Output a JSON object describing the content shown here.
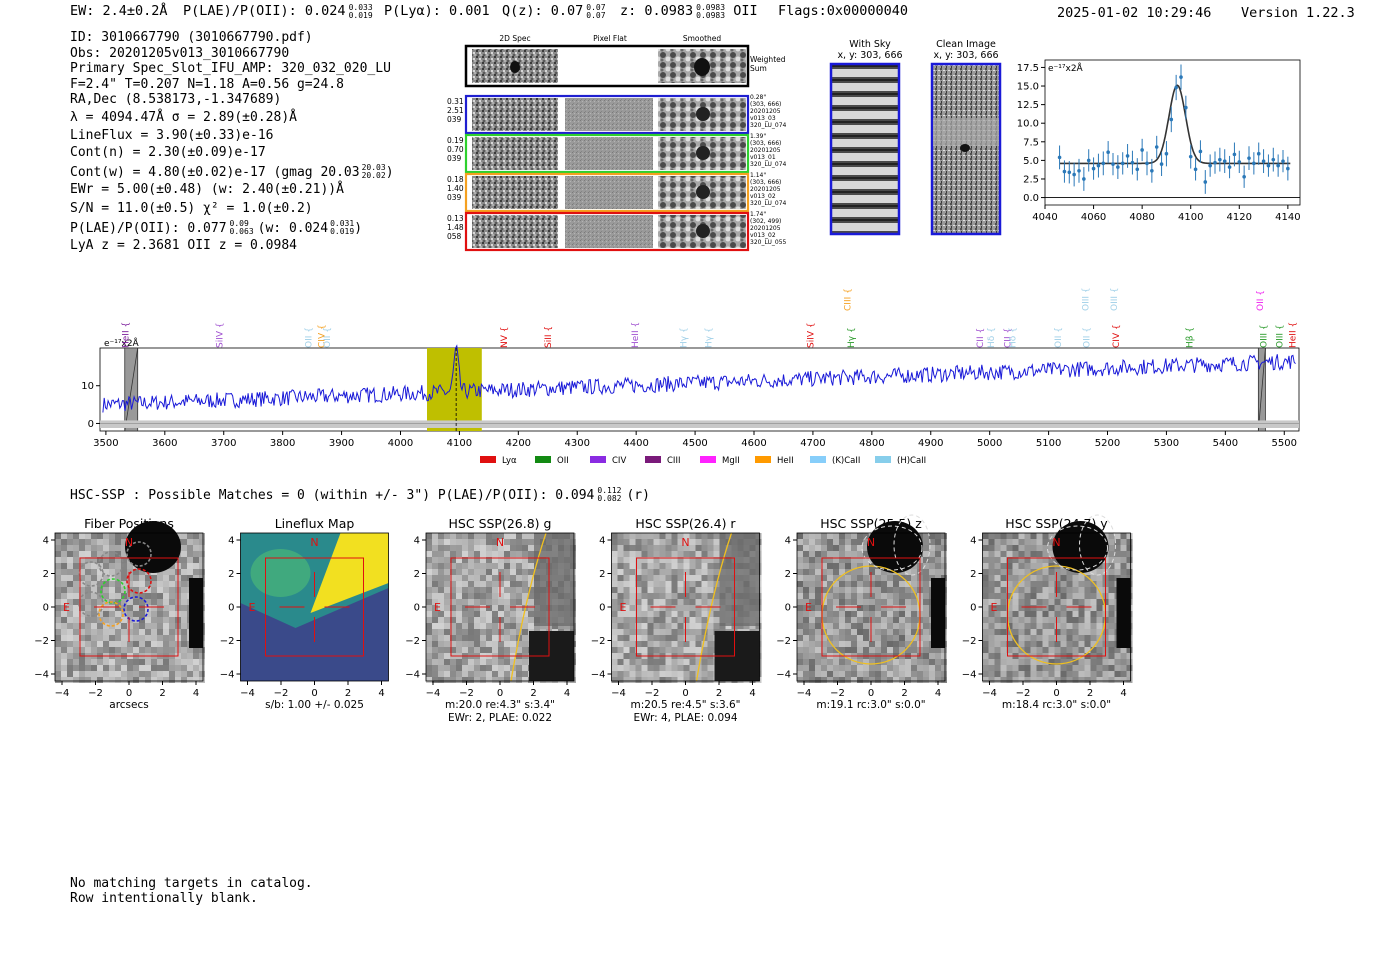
{
  "header": {
    "ew": "EW: 2.4±0.2Å",
    "plae": "P(LAE)/P(OII): 0.024",
    "plae_hi": "0.033",
    "plae_lo": "0.019",
    "plya": "P(Lyα): 0.001",
    "qz": "Q(z): 0.07",
    "qz_hi": "0.07",
    "qz_lo": "0.07",
    "z": "z: 0.0983",
    "z_hi": "0.0983",
    "z_lo": "0.0983",
    "z_line": "OII",
    "flags": "Flags:0x00000040",
    "datetime": "2025-01-02 10:29:46",
    "version": "Version 1.22.3"
  },
  "info": {
    "id": "ID: 3010667790 (3010667790.pdf)",
    "obs": "Obs: 20201205v013_3010667790",
    "primary": "Primary Spec_Slot_IFU_AMP: 320_032_020_LU",
    "params": "F=2.4\"  T=0.207  N=1.18  A=0.56  g=24.8",
    "radec": "RA,Dec (8.538173,-1.347689)",
    "lambda": "λ = 4094.47Å   σ = 2.89(±0.28)Å",
    "lineflux": "LineFlux = 3.90(±0.33)e-16",
    "contn": "Cont(n) = 2.30(±0.09)e-17",
    "contw": "Cont(w) = 4.80(±0.02)e-17 (gmag 20.03",
    "contw_hi": "20.03",
    "contw_lo": "20.02",
    "contw_end": ")",
    "ewr": "EWr = 5.00(±0.48) (w: 2.40(±0.21))Å",
    "sn": "S/N = 11.0(±0.5)  χ² = 1.0(±0.2)",
    "plae": "P(LAE)/P(OII): 0.077",
    "plae_hi": "0.09",
    "plae_lo": "0.063",
    "plae_w": "(w: 0.024",
    "plae_w_hi": "0.031",
    "plae_w_lo": "0.019",
    "plae_w_end": ")",
    "lya": "LyA z = 2.3681  OII z = 0.0984"
  },
  "cutouts": {
    "col_2d": "2D Spec",
    "col_flat": "Pixel Flat",
    "col_smooth": "Smoothed",
    "weighted": "Weighted\nSum",
    "rows": [
      {
        "left": "0.31\n2.51\n039",
        "right": "0.28\"\n(303, 666)\n\n20201205\nv013_03\n320_LU_074",
        "color": "#1f1fd0"
      },
      {
        "left": "0.19\n0.70\n039",
        "right": "1.39\"\n(303, 666)\n\n20201205\nv013_01\n320_LU_074",
        "color": "#2ed02e"
      },
      {
        "left": "0.18\n1.40\n039",
        "right": "1.14\"\n(303, 666)\n\n20201205\nv013_02\n320_LU_074",
        "color": "#f5a020"
      },
      {
        "left": "0.13\n1.48\n058",
        "right": "1.74\"\n(302, 499)\n\n20201205\nv013_02\n320_LU_055",
        "color": "#e01010"
      }
    ],
    "with_sky": "With Sky",
    "with_sky_xy": "x, y: 303, 666",
    "clean": "Clean Image",
    "clean_xy": "x, y: 303, 666"
  },
  "chart_data": [
    {
      "type": "line",
      "title": "",
      "unit_label": "e⁻¹⁷x2Å",
      "xlim": [
        4040,
        4145
      ],
      "ylim": [
        -1,
        18.5
      ],
      "xticks": [
        4040,
        4060,
        4080,
        4100,
        4120,
        4140
      ],
      "yticks": [
        0.0,
        2.5,
        5.0,
        7.5,
        10.0,
        12.5,
        15.0,
        17.5
      ],
      "ytick_labels": [
        "0.0",
        "2.5",
        "5.0",
        "7.5",
        "10.0",
        "12.5",
        "15.0",
        "17.5"
      ],
      "series": [
        {
          "kind": "data",
          "x": [
            4046,
            4048,
            4050,
            4052,
            4054,
            4056,
            4058,
            4060,
            4062,
            4064,
            4066,
            4068,
            4070,
            4072,
            4074,
            4076,
            4078,
            4080,
            4082,
            4084,
            4086,
            4088,
            4090,
            4092,
            4094,
            4096,
            4098,
            4100,
            4102,
            4104,
            4106,
            4108,
            4110,
            4112,
            4114,
            4116,
            4118,
            4120,
            4122,
            4124,
            4126,
            4128,
            4130,
            4132,
            4134,
            4136,
            4138,
            4140
          ],
          "y": [
            5.4,
            3.5,
            3.4,
            3.1,
            3.6,
            2.5,
            5.0,
            3.9,
            4.3,
            4.6,
            6.1,
            4.5,
            4.1,
            4.6,
            5.6,
            4.7,
            3.8,
            6.4,
            4.6,
            3.6,
            6.8,
            4.5,
            5.9,
            10.5,
            14.8,
            16.2,
            12.1,
            5.5,
            3.8,
            6.2,
            2.1,
            4.3,
            4.7,
            5.1,
            4.9,
            4.1,
            5.8,
            4.8,
            2.8,
            5.3,
            4.6,
            5.9,
            4.9,
            4.3,
            5.1,
            4.3,
            4.9,
            3.9
          ],
          "err": [
            1.6,
            1.5,
            1.5,
            1.6,
            1.6,
            1.6,
            1.5,
            1.5,
            1.6,
            1.6,
            1.5,
            1.5,
            1.6,
            1.5,
            1.6,
            1.6,
            1.5,
            1.5,
            1.6,
            1.6,
            1.5,
            1.6,
            1.7,
            1.7,
            1.7,
            1.7,
            1.6,
            1.6,
            1.5,
            1.5,
            1.6,
            1.5,
            1.5,
            1.6,
            1.6,
            1.5,
            1.6,
            1.5,
            1.5,
            1.6,
            1.5,
            1.5,
            1.6,
            1.5,
            1.6,
            1.5,
            1.5,
            1.6
          ],
          "color": "#2a78b8"
        },
        {
          "kind": "fit",
          "continuum": 4.6,
          "peak": 15.1,
          "center": 4094.47,
          "sigma": 2.89,
          "color": "#333333"
        }
      ]
    },
    {
      "type": "line",
      "title": "",
      "unit_label": "e⁻¹⁷x2Å",
      "xlim": [
        3490,
        5525
      ],
      "ylim": [
        -2,
        20
      ],
      "xticks": [
        3500,
        3600,
        3700,
        3800,
        3900,
        4000,
        4100,
        4200,
        4300,
        4400,
        4500,
        4600,
        4700,
        4800,
        4900,
        5000,
        5100,
        5200,
        5300,
        5400,
        5500
      ],
      "yticks": [
        0,
        10
      ],
      "highlight": {
        "x0": 4045,
        "x1": 4138,
        "color": "#bfbf00"
      },
      "line_marker": 4094.47,
      "masked": [
        [
          3532,
          3554
        ],
        [
          5456,
          5468
        ]
      ],
      "continuum_start": 5.0,
      "continuum_end": 16.5,
      "emission_line": {
        "center": 4094.47,
        "peak": 16.0,
        "sigma": 4
      },
      "spec_color": "#1a1ad8",
      "lines": [
        {
          "name": "HeII",
          "x": 3533,
          "color": "#7a1a9a",
          "row": "low"
        },
        {
          "name": "SiIV",
          "x": 3693,
          "color": "#a050d0",
          "row": "low"
        },
        {
          "name": "OII",
          "x": 3844,
          "color": "#a0d0e8",
          "row": "low"
        },
        {
          "name": "CIV",
          "x": 3866,
          "color": "#f5a020",
          "row": "low"
        },
        {
          "name": "OII",
          "x": 3875,
          "color": "#a0d0e8",
          "row": "low"
        },
        {
          "name": "NV",
          "x": 4176,
          "color": "#e01010",
          "row": "low"
        },
        {
          "name": "SiII",
          "x": 4250,
          "color": "#e01010",
          "row": "low"
        },
        {
          "name": "HeII",
          "x": 4398,
          "color": "#a050d0",
          "row": "low"
        },
        {
          "name": "Hγ",
          "x": 4480,
          "color": "#a0d0e8",
          "row": "low"
        },
        {
          "name": "Hγ",
          "x": 4523,
          "color": "#a0d0e8",
          "row": "low"
        },
        {
          "name": "SiIV",
          "x": 4696,
          "color": "#e01010",
          "row": "low"
        },
        {
          "name": "CIII",
          "x": 4759,
          "color": "#f5a020",
          "row": "high"
        },
        {
          "name": "Hγ",
          "x": 4765,
          "color": "#2a9a2a",
          "row": "low"
        },
        {
          "name": "CII",
          "x": 4984,
          "color": "#a050d0",
          "row": "low"
        },
        {
          "name": "Hδ",
          "x": 5002,
          "color": "#a0d0e8",
          "row": "low"
        },
        {
          "name": "CII",
          "x": 5030,
          "color": "#a050d0",
          "row": "low"
        },
        {
          "name": "Hδ",
          "x": 5039,
          "color": "#a0d0e8",
          "row": "low"
        },
        {
          "name": "OII",
          "x": 5116,
          "color": "#a0d0e8",
          "row": "low"
        },
        {
          "name": "OIII",
          "x": 5163,
          "color": "#a0d0e8",
          "row": "high"
        },
        {
          "name": "OII",
          "x": 5164,
          "color": "#a0d0e8",
          "row": "low"
        },
        {
          "name": "OIII",
          "x": 5211,
          "color": "#a0d0e8",
          "row": "high"
        },
        {
          "name": "CIV",
          "x": 5214,
          "color": "#e01010",
          "row": "low"
        },
        {
          "name": "Hβ",
          "x": 5339,
          "color": "#2a9a2a",
          "row": "low"
        },
        {
          "name": "OII",
          "x": 5459,
          "color": "#ee22ee",
          "row": "high"
        },
        {
          "name": "OIII",
          "x": 5465,
          "color": "#2a9a2a",
          "row": "low"
        },
        {
          "name": "OIII",
          "x": 5492,
          "color": "#2a9a2a",
          "row": "low"
        },
        {
          "name": "HeII",
          "x": 5514,
          "color": "#e01010",
          "row": "low"
        }
      ],
      "legend": [
        {
          "name": "Lyα",
          "color": "#e01010"
        },
        {
          "name": "OII",
          "color": "#138a13"
        },
        {
          "name": "CIV",
          "color": "#8a2be2"
        },
        {
          "name": "CIII",
          "color": "#7a1a7a"
        },
        {
          "name": "MgII",
          "color": "#ff22ff"
        },
        {
          "name": "HeII",
          "color": "#ff9a00"
        },
        {
          "name": "(K)CaII",
          "color": "#87cefa"
        },
        {
          "name": "(H)CaII",
          "color": "#87ceeb"
        }
      ]
    }
  ],
  "hsc_line": "HSC-SSP : Possible Matches = 0 (within +/- 3\")  P(LAE)/P(OII): 0.094",
  "hsc_hi": "0.112",
  "hsc_lo": "0.082",
  "hsc_band": "(r)",
  "panels": [
    {
      "title": "Fiber Positions",
      "cap1": "arcsecs",
      "cap2": "",
      "cap3": ""
    },
    {
      "title": "Lineflux Map",
      "cap1": "s/b: 1.00 +/- 0.025",
      "cap2": "",
      "cap3": ""
    },
    {
      "title": "HSC SSP(26.8) g",
      "cap1": "m:20.0  re:4.3\"  s:3.4\"",
      "cap2": "EWr: 2, PLAE: 0.022",
      "cap3": ""
    },
    {
      "title": "HSC SSP(26.4) r",
      "cap1": "m:20.5  re:4.5\"  s:3.6\"",
      "cap2": "EWr: 4, PLAE: 0.094",
      "cap3": ""
    },
    {
      "title": "HSC SSP(25.5) z",
      "cap1": "m:19.1 rc:3.0\"  s:0.0\"",
      "cap2": "",
      "cap3": ""
    },
    {
      "title": "HSC SSP(24.7) y",
      "cap1": "m:18.4 rc:3.0\"  s:0.0\"",
      "cap2": "",
      "cap3": ""
    }
  ],
  "panel_axes": {
    "ticks": [
      "−4",
      "−2",
      "0",
      "2",
      "4"
    ],
    "n": "N",
    "e": "E"
  },
  "footer": {
    "line1": "No matching targets in catalog.",
    "line2": "Row intentionally blank."
  }
}
